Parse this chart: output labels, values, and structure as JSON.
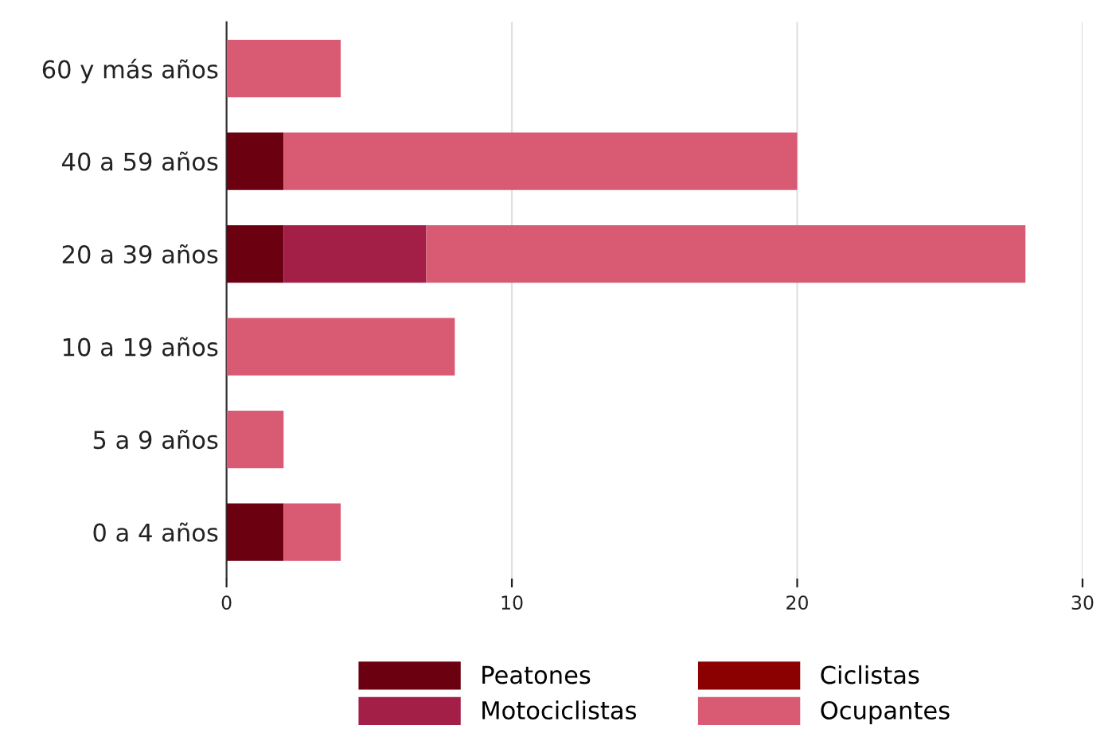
{
  "chart_data": {
    "type": "bar",
    "orientation": "horizontal",
    "stacked": true,
    "categories": [
      "60 y más años",
      "40 a 59 años",
      "20 a 39 años",
      "10 a 19 años",
      "5 a 9 años",
      "0 a 4 años"
    ],
    "series": [
      {
        "name": "Peatones",
        "color": "#6b0010",
        "values": [
          0,
          2,
          2,
          0,
          0,
          2
        ]
      },
      {
        "name": "Ciclistas",
        "color": "#8b0000",
        "values": [
          0,
          0,
          0,
          0,
          0,
          0
        ]
      },
      {
        "name": "Motociclistas",
        "color": "#a31f48",
        "values": [
          0,
          0,
          5,
          0,
          0,
          0
        ]
      },
      {
        "name": "Ocupantes",
        "color": "#d95a73",
        "values": [
          4,
          18,
          21,
          8,
          2,
          2
        ]
      }
    ],
    "xlim": [
      0,
      30
    ],
    "xticks": [
      0,
      10,
      20,
      30
    ],
    "grid": "x",
    "legend": "bottom"
  }
}
